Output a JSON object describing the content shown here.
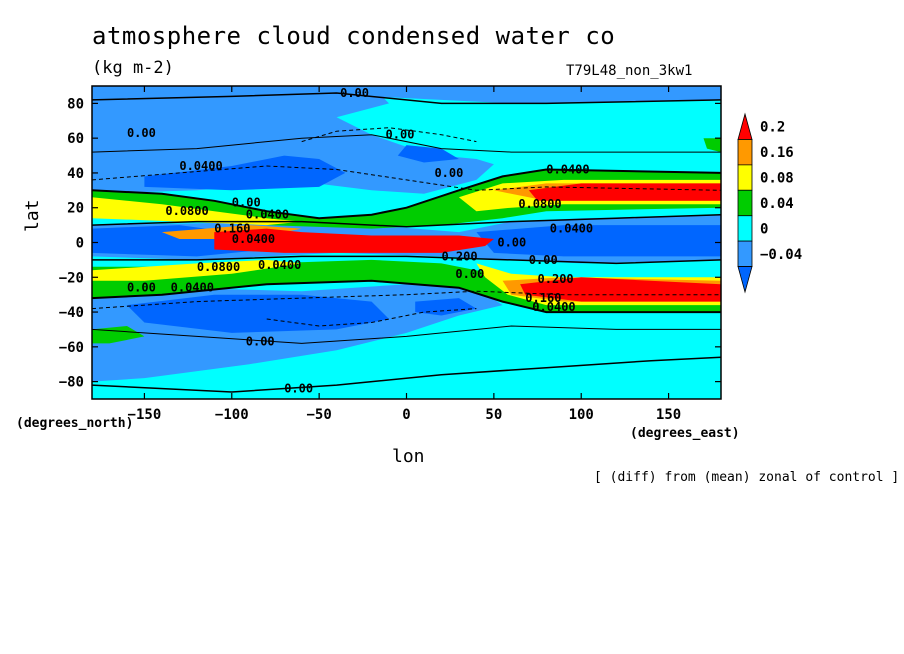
{
  "chart_data": {
    "type": "heatmap",
    "title": "atmosphere cloud condensed water co",
    "units": "(kg m-2)",
    "run_id": "T79L48_non_3kw1",
    "xlabel": "lon",
    "ylabel": "lat",
    "x_unit_note": "(degrees_east)",
    "y_unit_note": "(degrees_north)",
    "footer": "[ (diff) from (mean) zonal of control ]",
    "xlim": [
      -180,
      180
    ],
    "ylim": [
      -90,
      90
    ],
    "x_ticks": [
      -150,
      -100,
      -50,
      0,
      50,
      100,
      150
    ],
    "y_ticks": [
      80,
      60,
      40,
      20,
      0,
      -20,
      -40,
      -60,
      -80
    ],
    "x_tick_labels": [
      "−150",
      "−100",
      "−50",
      "0",
      "50",
      "100",
      "150"
    ],
    "y_tick_labels": [
      "80",
      "60",
      "40",
      "20",
      "0",
      "−20",
      "−40",
      "−60",
      "−80"
    ],
    "colorbar": {
      "levels": [
        0.2,
        0.16,
        0.08,
        0.04,
        0,
        -0.04
      ],
      "labels": [
        "0.2",
        "0.16",
        "0.08",
        "0.04",
        "0",
        "−0.04"
      ],
      "colors": [
        "#ff0000",
        "#ff9900",
        "#ffff00",
        "#00cc00",
        "#00ffff",
        "#3399ff",
        "#0066ff"
      ]
    },
    "contour_labels": [
      {
        "text": "0.00",
        "lon": -38,
        "lat": 86
      },
      {
        "text": "0.00",
        "lon": -160,
        "lat": 63
      },
      {
        "text": "0.00",
        "lon": -12,
        "lat": 62
      },
      {
        "text": "0.0400",
        "lon": -130,
        "lat": 44
      },
      {
        "text": "0.00",
        "lon": 16,
        "lat": 40
      },
      {
        "text": "0.0400",
        "lon": 80,
        "lat": 42
      },
      {
        "text": "0.00",
        "lon": -100,
        "lat": 23
      },
      {
        "text": "0.0800",
        "lon": -138,
        "lat": 18
      },
      {
        "text": "0.0400",
        "lon": -92,
        "lat": 16
      },
      {
        "text": "0.160",
        "lon": -110,
        "lat": 8
      },
      {
        "text": "0.0400",
        "lon": -100,
        "lat": 2
      },
      {
        "text": "0.0800",
        "lon": 64,
        "lat": 22
      },
      {
        "text": "0.0400",
        "lon": 82,
        "lat": 8
      },
      {
        "text": "0.00",
        "lon": 52,
        "lat": 0
      },
      {
        "text": "0.200",
        "lon": 20,
        "lat": -8
      },
      {
        "text": "0.00",
        "lon": 70,
        "lat": -10
      },
      {
        "text": "0.0800",
        "lon": -120,
        "lat": -14
      },
      {
        "text": "0.0400",
        "lon": -85,
        "lat": -13
      },
      {
        "text": "0.00",
        "lon": 28,
        "lat": -18
      },
      {
        "text": "0.200",
        "lon": 75,
        "lat": -21
      },
      {
        "text": "0.0400",
        "lon": -135,
        "lat": -26
      },
      {
        "text": "0.00",
        "lon": -160,
        "lat": -26
      },
      {
        "text": "0.160",
        "lon": 68,
        "lat": -32
      },
      {
        "text": "0.0400",
        "lon": 72,
        "lat": -37
      },
      {
        "text": "0.00",
        "lon": -92,
        "lat": -57
      },
      {
        "text": "0.00",
        "lon": -70,
        "lat": -84
      }
    ],
    "colors": {
      "background": "#00ffff",
      "extreme_low": "#0066ff",
      "low": "#3399ff",
      "high": "#ff0000"
    }
  }
}
